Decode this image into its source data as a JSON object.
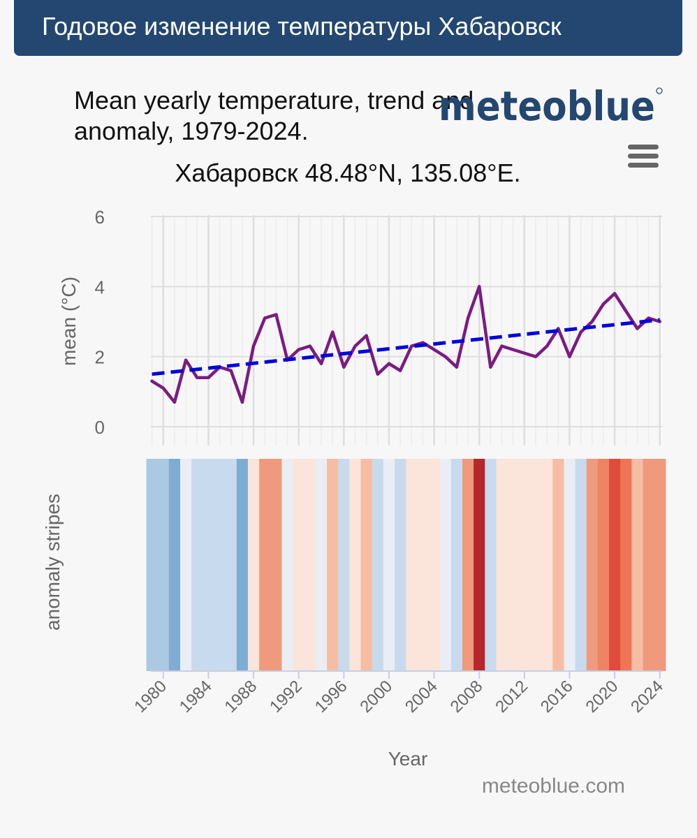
{
  "page": {
    "header_title": "Годовое изменение температуры Хабаровск"
  },
  "chart_data": {
    "type": "line",
    "title": "Mean yearly temperature, trend and anomaly, 1979-2024.",
    "subtitle": "Хабаровск 48.48°N, 135.08°E.",
    "brand": "meteoblue",
    "credit": "meteoblue.com",
    "xlabel": "Year",
    "ylabel": "mean (°C)",
    "stripes_label": "anomaly stripes",
    "ylim": [
      0,
      6
    ],
    "yticks": [
      0,
      2,
      4,
      6
    ],
    "xlim": [
      1978.9,
      2024.2
    ],
    "xticks": [
      1980,
      1984,
      1988,
      1992,
      1996,
      2000,
      2004,
      2008,
      2012,
      2016,
      2020,
      2024
    ],
    "grid": true,
    "legend": "none",
    "series": [
      {
        "role": "mean",
        "color": "#7a1c82",
        "x": [
          1979,
          1980,
          1981,
          1982,
          1983,
          1984,
          1985,
          1986,
          1987,
          1988,
          1989,
          1990,
          1991,
          1992,
          1993,
          1994,
          1995,
          1996,
          1997,
          1998,
          1999,
          2000,
          2001,
          2002,
          2003,
          2004,
          2005,
          2006,
          2007,
          2008,
          2009,
          2010,
          2013,
          2014,
          2015,
          2016,
          2017,
          2018,
          2019,
          2020,
          2021,
          2022,
          2023,
          2024
        ],
        "y": [
          1.3,
          1.1,
          0.7,
          1.9,
          1.4,
          1.4,
          1.7,
          1.6,
          0.7,
          2.3,
          3.1,
          3.2,
          1.9,
          2.2,
          2.3,
          1.8,
          2.7,
          1.7,
          2.3,
          2.6,
          1.5,
          1.8,
          1.6,
          2.3,
          2.4,
          2.2,
          2.0,
          1.7,
          3.1,
          4.0,
          1.7,
          2.3,
          2.0,
          2.3,
          2.8,
          2.0,
          2.7,
          3.0,
          3.5,
          3.8,
          3.3,
          2.8,
          3.1,
          3.0
        ]
      },
      {
        "role": "trend",
        "style": "dashed",
        "color": "#0000dd",
        "x": [
          1979,
          2024
        ],
        "y": [
          1.5,
          3.05
        ]
      }
    ],
    "anomaly_stripes": {
      "years": [
        1979,
        1980,
        1981,
        1982,
        1983,
        1984,
        1985,
        1986,
        1987,
        1988,
        1989,
        1990,
        1991,
        1992,
        1993,
        1994,
        1995,
        1996,
        1997,
        1998,
        1999,
        2000,
        2001,
        2002,
        2003,
        2004,
        2005,
        2006,
        2007,
        2008,
        2009,
        2010,
        2011,
        2012,
        2013,
        2014,
        2015,
        2016,
        2017,
        2018,
        2019,
        2020,
        2021,
        2022,
        2023,
        2024
      ],
      "colors": [
        "#abc9e0",
        "#abc9e0",
        "#7eadd4",
        "#eaeef4",
        "#c8daee",
        "#c8daee",
        "#c8daee",
        "#c8daee",
        "#7eadd4",
        "#fbe4d9",
        "#ef9a7d",
        "#ef9a7d",
        "#eaeef4",
        "#fbe4d9",
        "#fbe4d9",
        "#eaeef4",
        "#f6bda4",
        "#c8daee",
        "#fbe4d9",
        "#f6bda4",
        "#c8daee",
        "#eaeef4",
        "#c8daee",
        "#fbe4d9",
        "#fbe4d9",
        "#fbe4d9",
        "#eaeef4",
        "#c8daee",
        "#ef9a7d",
        "#b5272b",
        "#c8daee",
        "#fbe4d9",
        "#fbe4d9",
        "#fbe4d9",
        "#fbe4d9",
        "#fbe4d9",
        "#f6bda4",
        "#eaeef4",
        "#c8daee",
        "#ef9a7d",
        "#ee8464",
        "#e04c3c",
        "#ee7656",
        "#f6bda4",
        "#ef9a7d",
        "#ef9a7d"
      ]
    }
  }
}
